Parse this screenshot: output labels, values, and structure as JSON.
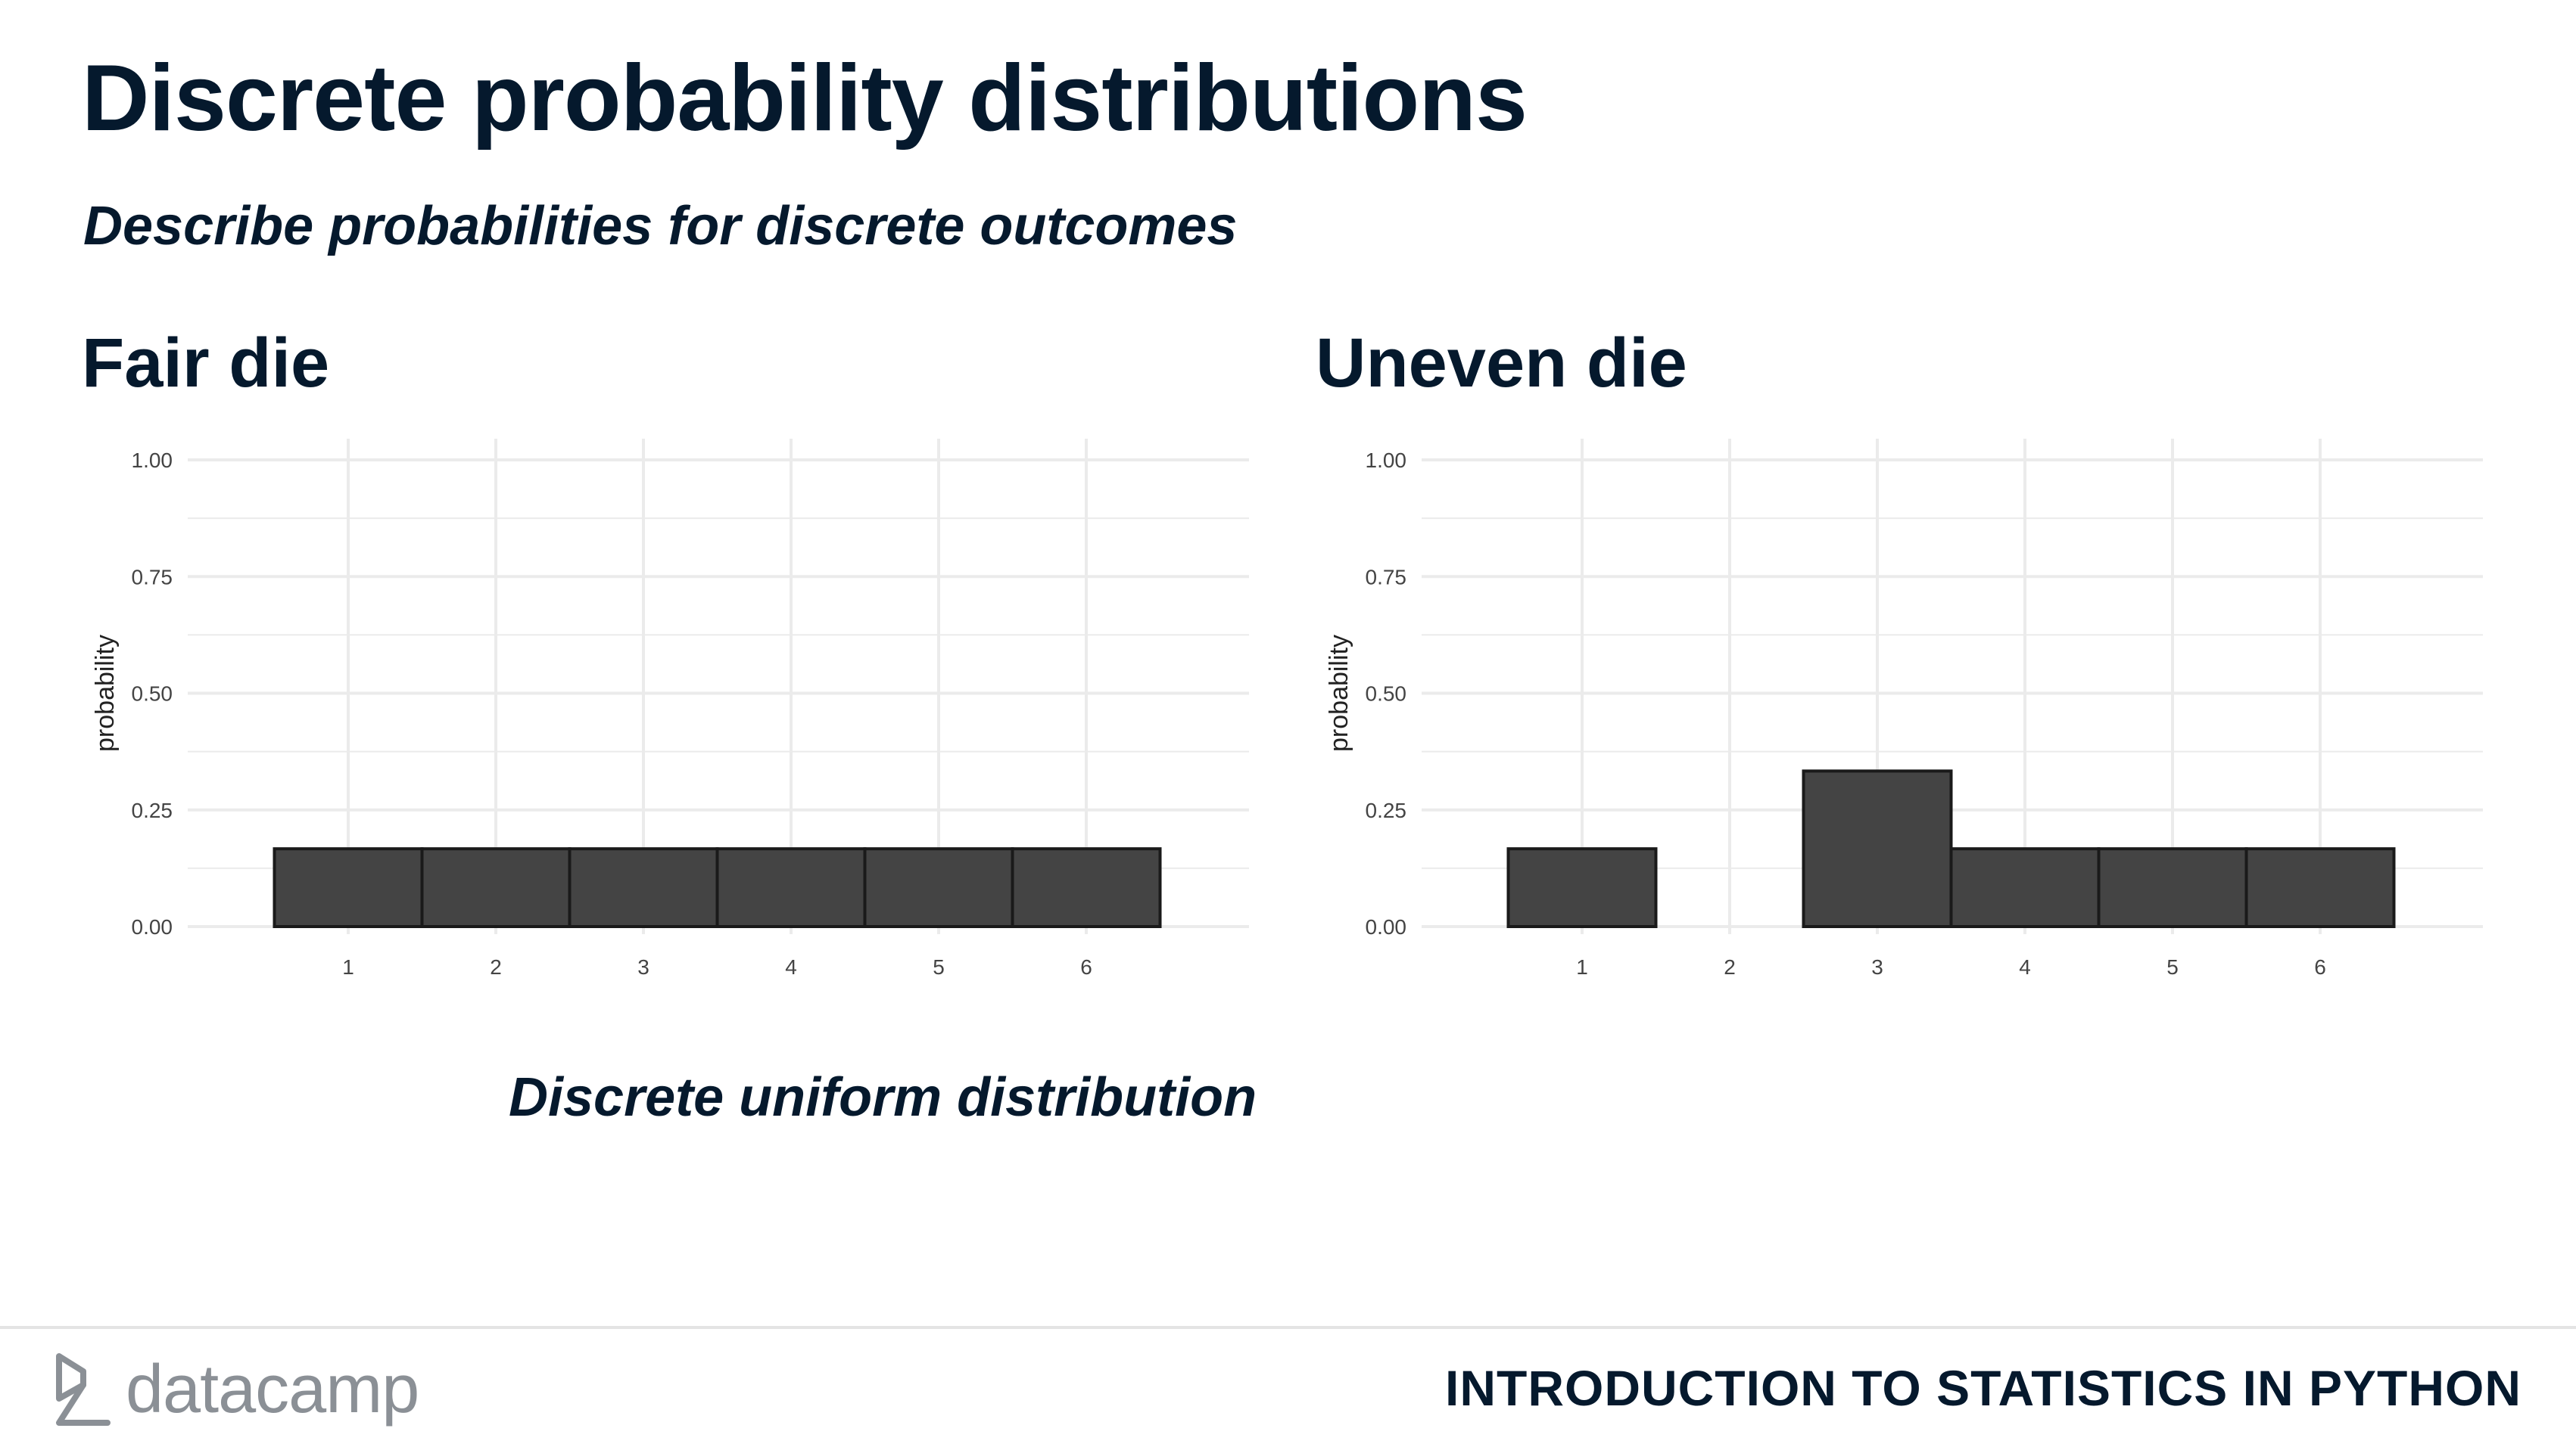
{
  "slide": {
    "title": "Discrete probability distributions",
    "subtitle": "Describe probabilities for discrete outcomes",
    "caption": "Discrete uniform distribution"
  },
  "footer": {
    "logo_text": "datacamp",
    "logo_icon": "datacamp-logo-icon",
    "course_title": "INTRODUCTION TO STATISTICS IN PYTHON"
  },
  "colors": {
    "bar_fill": "#444444",
    "bar_stroke": "#1a1a1a",
    "grid": "#ebebeb",
    "text_dark": "#05192d"
  },
  "chart_data": [
    {
      "type": "bar",
      "heading": "Fair die",
      "categories": [
        "1",
        "2",
        "3",
        "4",
        "5",
        "6"
      ],
      "values": [
        0.1667,
        0.1667,
        0.1667,
        0.1667,
        0.1667,
        0.1667
      ],
      "xlabel": "",
      "ylabel": "probability",
      "ylim": [
        0,
        1
      ],
      "yticks": [
        "0.00",
        "0.25",
        "0.50",
        "0.75",
        "1.00"
      ],
      "grid": true
    },
    {
      "type": "bar",
      "heading": "Uneven die",
      "categories": [
        "1",
        "2",
        "3",
        "4",
        "5",
        "6"
      ],
      "values": [
        0.1667,
        0,
        0.3333,
        0.1667,
        0.1667,
        0.1667
      ],
      "xlabel": "",
      "ylabel": "probability",
      "ylim": [
        0,
        1
      ],
      "yticks": [
        "0.00",
        "0.25",
        "0.50",
        "0.75",
        "1.00"
      ],
      "grid": true
    }
  ]
}
